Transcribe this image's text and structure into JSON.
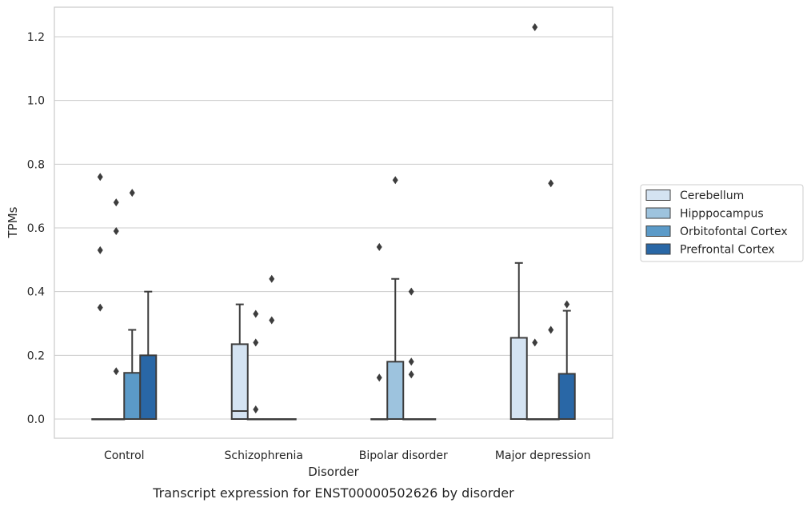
{
  "caption": "Transcript expression for ENST00000502626 by disorder",
  "chart_data": {
    "type": "boxplot",
    "xlabel": "Disorder",
    "ylabel": "TPMs",
    "ylim": [
      -0.06,
      1.29
    ],
    "yticks": [
      "0.0",
      "0.2",
      "0.4",
      "0.6",
      "0.8",
      "1.0",
      "1.2"
    ],
    "grid": "horizontal",
    "legend_position": "right",
    "categories": [
      "Control",
      "Schizophrenia",
      "Bipolar disorder",
      "Major depression"
    ],
    "series": [
      {
        "name": "Cerebellum",
        "color": "#d4e3f2",
        "boxes": [
          {
            "q1": 0,
            "median": 0,
            "q3": 0,
            "whisker_low": 0,
            "whisker_high": 0,
            "outliers": [
              0.35,
              0.53,
              0.76
            ]
          },
          {
            "q1": 0,
            "median": 0.025,
            "q3": 0.235,
            "whisker_low": 0,
            "whisker_high": 0.36,
            "outliers": []
          },
          {
            "q1": 0,
            "median": 0,
            "q3": 0,
            "whisker_low": 0,
            "whisker_high": 0,
            "outliers": [
              0.13,
              0.54
            ]
          },
          {
            "q1": 0,
            "median": 0,
            "q3": 0.255,
            "whisker_low": 0,
            "whisker_high": 0.49,
            "outliers": []
          }
        ]
      },
      {
        "name": "Hipppocampus",
        "color": "#9dc3de",
        "boxes": [
          {
            "q1": 0,
            "median": 0,
            "q3": 0,
            "whisker_low": 0,
            "whisker_high": 0,
            "outliers": [
              0.15,
              0.59,
              0.68
            ]
          },
          {
            "q1": 0,
            "median": 0,
            "q3": 0,
            "whisker_low": 0,
            "whisker_high": 0,
            "outliers": [
              0.03,
              0.24,
              0.33
            ]
          },
          {
            "q1": 0,
            "median": 0,
            "q3": 0.18,
            "whisker_low": 0,
            "whisker_high": 0.44,
            "outliers": [
              0.75
            ]
          },
          {
            "q1": 0,
            "median": 0,
            "q3": 0,
            "whisker_low": 0,
            "whisker_high": 0,
            "outliers": [
              0.24,
              1.23
            ]
          }
        ]
      },
      {
        "name": "Orbitofontal Cortex",
        "color": "#5b9ac8",
        "boxes": [
          {
            "q1": 0,
            "median": 0,
            "q3": 0.145,
            "whisker_low": 0,
            "whisker_high": 0.28,
            "outliers": [
              0.71
            ]
          },
          {
            "q1": 0,
            "median": 0,
            "q3": 0,
            "whisker_low": 0,
            "whisker_high": 0,
            "outliers": [
              0.31,
              0.44
            ]
          },
          {
            "q1": 0,
            "median": 0,
            "q3": 0,
            "whisker_low": 0,
            "whisker_high": 0,
            "outliers": [
              0.14,
              0.18,
              0.4
            ]
          },
          {
            "q1": 0,
            "median": 0,
            "q3": 0,
            "whisker_low": 0,
            "whisker_high": 0,
            "outliers": [
              0.28,
              0.74
            ]
          }
        ]
      },
      {
        "name": "Prefrontal Cortex",
        "color": "#2967a6",
        "boxes": [
          {
            "q1": 0,
            "median": 0,
            "q3": 0.2,
            "whisker_low": 0,
            "whisker_high": 0.4,
            "outliers": []
          },
          {
            "q1": 0,
            "median": 0,
            "q3": 0,
            "whisker_low": 0,
            "whisker_high": 0,
            "outliers": []
          },
          {
            "q1": 0,
            "median": 0,
            "q3": 0,
            "whisker_low": 0,
            "whisker_high": 0,
            "outliers": []
          },
          {
            "q1": 0,
            "median": 0,
            "q3": 0.142,
            "whisker_low": 0,
            "whisker_high": 0.34,
            "outliers": [
              0.36
            ]
          }
        ]
      }
    ]
  }
}
